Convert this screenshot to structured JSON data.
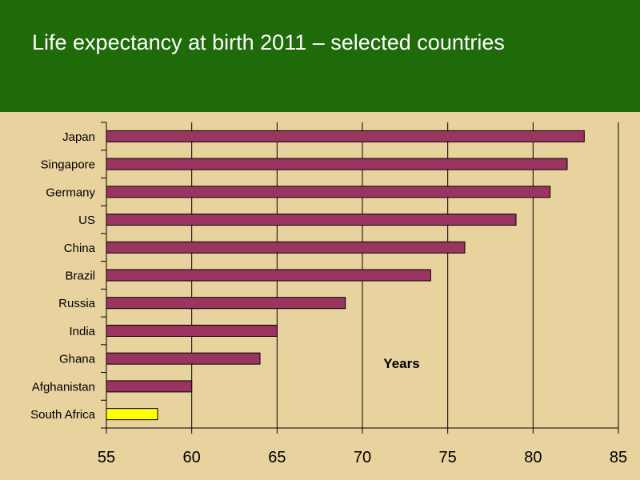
{
  "header": {
    "title": "Life expectancy at birth 2011 – selected countries"
  },
  "colors": {
    "header_bg": "#1f6b0a",
    "plot_bg": "#e8d29e",
    "bar": "#993560",
    "highlight_bar": "#ffff00"
  },
  "chart_data": {
    "type": "bar",
    "orientation": "horizontal",
    "title": "Life expectancy at birth 2011 – selected countries",
    "xlabel": "Years",
    "ylabel": "",
    "categories": [
      "Japan",
      "Singapore",
      "Germany",
      "US",
      "China",
      "Brazil",
      "Russia",
      "India",
      "Ghana",
      "Afghanistan",
      "South Africa"
    ],
    "values": [
      83,
      82,
      81,
      79,
      76,
      74,
      69,
      65,
      64,
      60,
      58
    ],
    "highlight": "South Africa",
    "xlim": [
      55,
      85
    ],
    "xticks": [
      55,
      60,
      65,
      70,
      75,
      80,
      85
    ],
    "grid": "vertical",
    "legend": "none"
  }
}
